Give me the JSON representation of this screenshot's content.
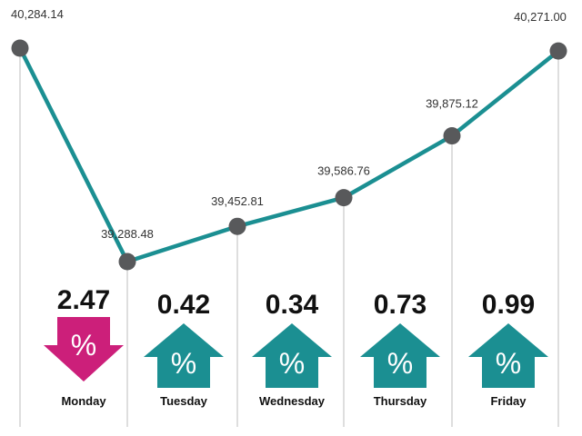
{
  "chart_data": {
    "type": "line",
    "categories": [
      "",
      "Monday",
      "Tuesday",
      "Wednesday",
      "Thursday",
      "Friday"
    ],
    "values": [
      40284.14,
      39288.48,
      39452.81,
      39586.76,
      39875.12,
      40271.0
    ],
    "value_labels": [
      "40,284.14",
      "39,288.48",
      "39,452.81",
      "39,586.76",
      "39,875.12",
      "40,271.00"
    ],
    "title": "",
    "xlabel": "",
    "ylabel": "",
    "ylim": [
      39288.48,
      40284.14
    ],
    "grid": false,
    "changes": [
      {
        "day": "Monday",
        "percent": "2.47",
        "direction": "down",
        "symbol": "%"
      },
      {
        "day": "Tuesday",
        "percent": "0.42",
        "direction": "up",
        "symbol": "%"
      },
      {
        "day": "Wednesday",
        "percent": "0.34",
        "direction": "up",
        "symbol": "%"
      },
      {
        "day": "Thursday",
        "percent": "0.73",
        "direction": "up",
        "symbol": "%"
      },
      {
        "day": "Friday",
        "percent": "0.99",
        "direction": "up",
        "symbol": "%"
      }
    ]
  },
  "colors": {
    "line": "#1b8f92",
    "marker": "#58595b",
    "guide": "#c8c8c8",
    "up": "#1b8f92",
    "down": "#cc1f7a"
  }
}
